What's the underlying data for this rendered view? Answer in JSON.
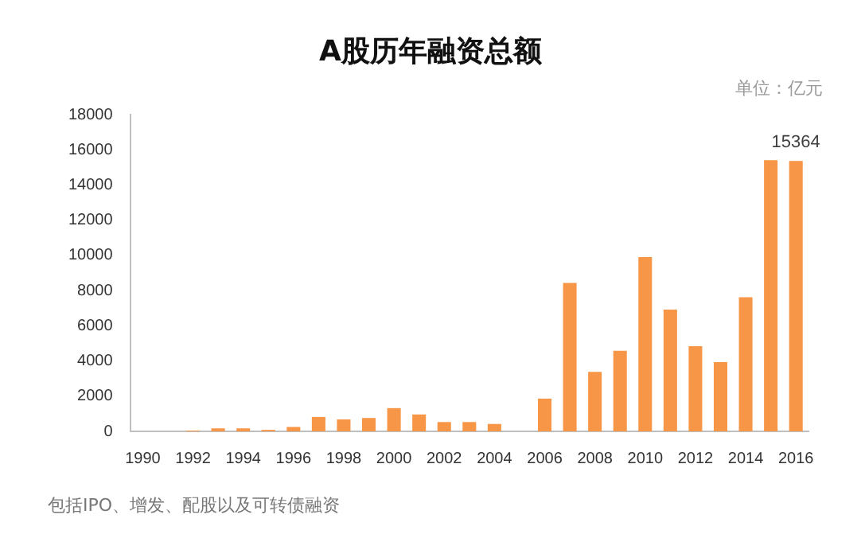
{
  "chart_data": {
    "type": "bar",
    "title": "A股历年融资总额",
    "categories": [
      "1990",
      null,
      "1992",
      null,
      "1994",
      null,
      "1996",
      null,
      "1998",
      null,
      "2000",
      null,
      "2002",
      null,
      "2004",
      null,
      "2006",
      null,
      "2008",
      null,
      "2010",
      null,
      "2012",
      null,
      "2014",
      null,
      "2016"
    ],
    "values": [
      0,
      0,
      50,
      170,
      170,
      85,
      250,
      820,
      680,
      760,
      1320,
      960,
      530,
      530,
      420,
      0,
      1860,
      8440,
      3380,
      4580,
      9900,
      6920,
      4840,
      3940,
      7620,
      15410,
      15364
    ],
    "value_labels": [
      null,
      null,
      null,
      null,
      null,
      null,
      null,
      null,
      null,
      null,
      null,
      null,
      null,
      null,
      null,
      null,
      null,
      null,
      null,
      null,
      null,
      null,
      null,
      null,
      null,
      null,
      "15364"
    ],
    "color": "#f79646",
    "ylim": [
      0,
      18000
    ],
    "yticks": [
      0,
      2000,
      4000,
      6000,
      8000,
      10000,
      12000,
      14000,
      16000,
      18000
    ],
    "grid": false,
    "legend": false,
    "annotations": [
      "单位：亿元",
      "包括IPO、增发、配股以及可转债融资"
    ]
  }
}
